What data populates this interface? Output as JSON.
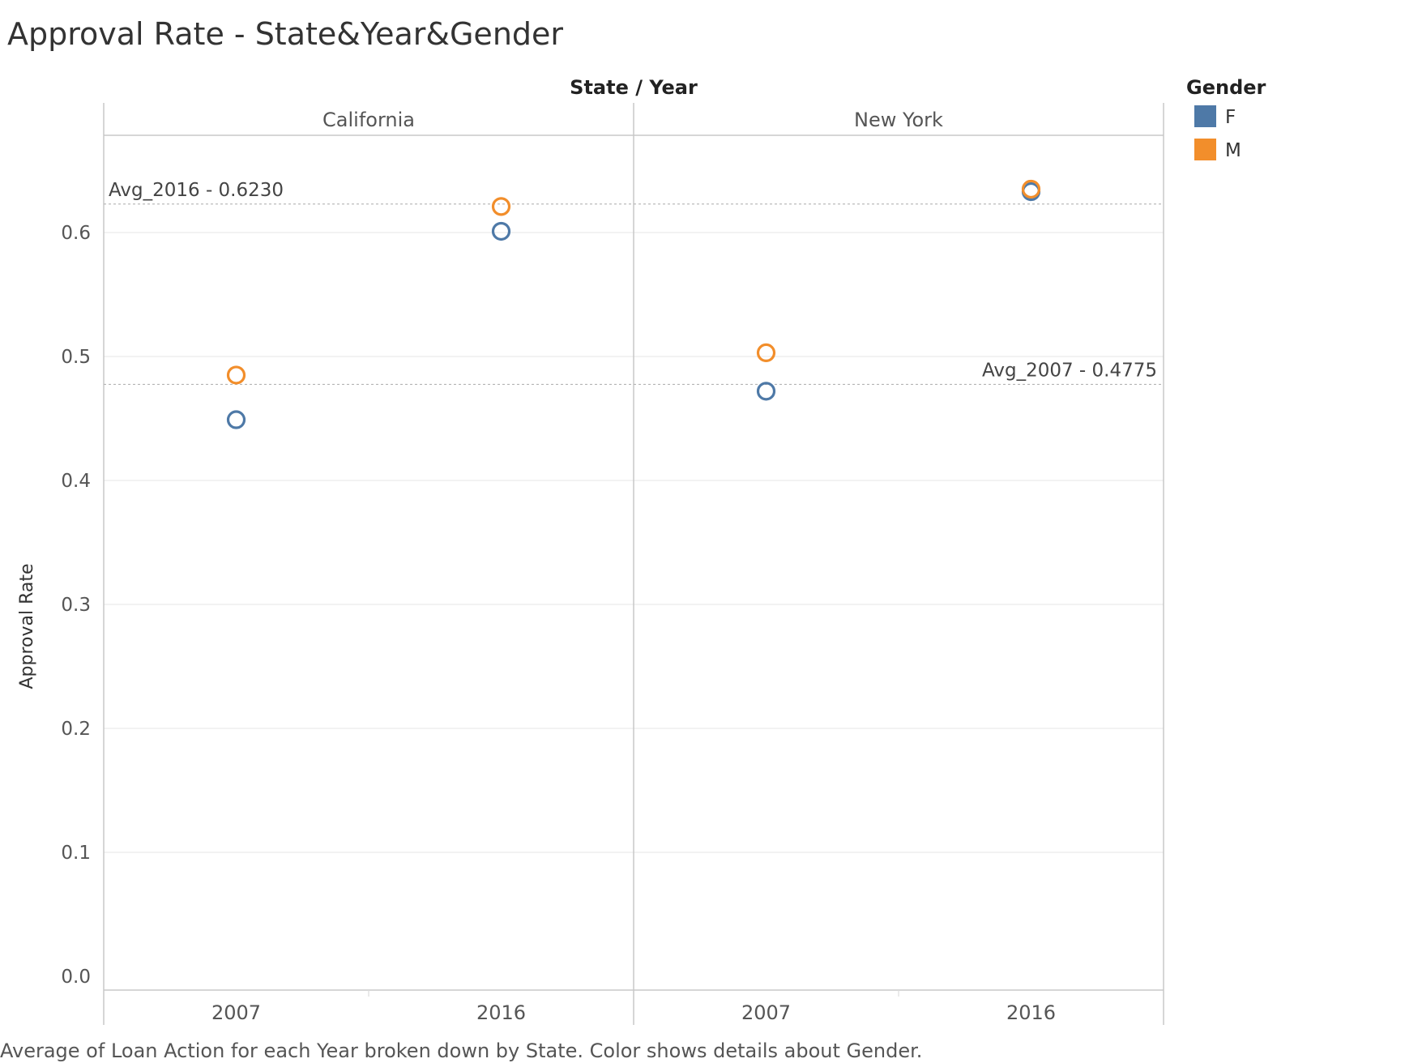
{
  "chart_data": {
    "type": "scatter",
    "title": "Approval Rate - State&Year&Gender",
    "column_header": "State / Year",
    "ylabel": "Approval Rate",
    "ylim": [
      0,
      0.7
    ],
    "yticks": [
      "0.0",
      "0.1",
      "0.2",
      "0.3",
      "0.4",
      "0.5",
      "0.6"
    ],
    "grid": true,
    "legend_position": "right",
    "panels": [
      {
        "name": "California",
        "categories": [
          "2007",
          "2016"
        ]
      },
      {
        "name": "New York",
        "categories": [
          "2007",
          "2016"
        ]
      }
    ],
    "series": [
      {
        "name": "F",
        "color": "#4e79a7",
        "points": [
          {
            "panel": "California",
            "x": "2007",
            "y": 0.449
          },
          {
            "panel": "California",
            "x": "2016",
            "y": 0.601
          },
          {
            "panel": "New York",
            "x": "2007",
            "y": 0.472
          },
          {
            "panel": "New York",
            "x": "2016",
            "y": 0.633
          }
        ]
      },
      {
        "name": "M",
        "color": "#f28e2b",
        "points": [
          {
            "panel": "California",
            "x": "2007",
            "y": 0.485
          },
          {
            "panel": "California",
            "x": "2016",
            "y": 0.621
          },
          {
            "panel": "New York",
            "x": "2007",
            "y": 0.503
          },
          {
            "panel": "New York",
            "x": "2016",
            "y": 0.635
          }
        ]
      }
    ],
    "reference_lines": [
      {
        "label": "Avg_2016 - 0.6230",
        "value": 0.623,
        "label_position": "top-left"
      },
      {
        "label": "Avg_2007 - 0.4775",
        "value": 0.4775,
        "label_position": "right"
      }
    ],
    "legend": {
      "title": "Gender",
      "items": [
        {
          "label": "F",
          "color": "#4e79a7"
        },
        {
          "label": "M",
          "color": "#f28e2b"
        }
      ]
    },
    "caption": "Average of Loan Action for each Year broken down by State.  Color shows details about Gender."
  }
}
